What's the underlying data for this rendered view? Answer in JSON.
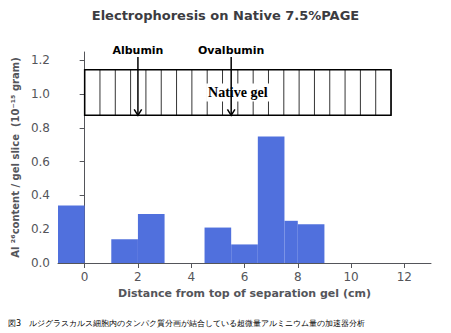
{
  "chart_data": {
    "type": "bar",
    "title": "Electrophoresis on Native 7.5%PAGE",
    "xlabel": "Distance from top of separation gel (cm)",
    "ylabel": "Al ²⁶content / gel slice  (10⁻¹⁵ gram)",
    "caption": "図3　ルジグラスカルス細胞内のタンパク質分画が結合している超微量アルミニウム量の加速器分析",
    "x": [
      -0.5,
      1.5,
      2.5,
      5.0,
      6.0,
      7.0,
      7.75,
      8.5
    ],
    "values": [
      0.34,
      0.14,
      0.29,
      0.21,
      0.11,
      0.75,
      0.25,
      0.23
    ],
    "widths": [
      1.0,
      1.0,
      1.0,
      1.0,
      1.0,
      1.0,
      0.5,
      1.0
    ],
    "xlim": [
      -1,
      13
    ],
    "ylim": [
      0,
      1.25
    ],
    "xticks": [
      0,
      2,
      4,
      6,
      8,
      10,
      12
    ],
    "yticks": [
      {
        "value": 0,
        "label": "0.0"
      },
      0.2,
      0.4,
      0.6,
      0.8,
      {
        "value": 1.0,
        "label": "1.0"
      },
      1.2
    ],
    "grid": false,
    "annotations": [
      {
        "text": "Albumin",
        "x": 2.0,
        "y": 1.22,
        "arrow_to": 0.875
      },
      {
        "text": "Ovalbumin",
        "x": 5.5,
        "y": 1.22,
        "arrow_to": 0.875
      }
    ],
    "gel_box": {
      "label": "Native gel",
      "x": 0.0,
      "y": 0.875,
      "width": 11.5,
      "height": 0.27,
      "lines": 20
    }
  }
}
